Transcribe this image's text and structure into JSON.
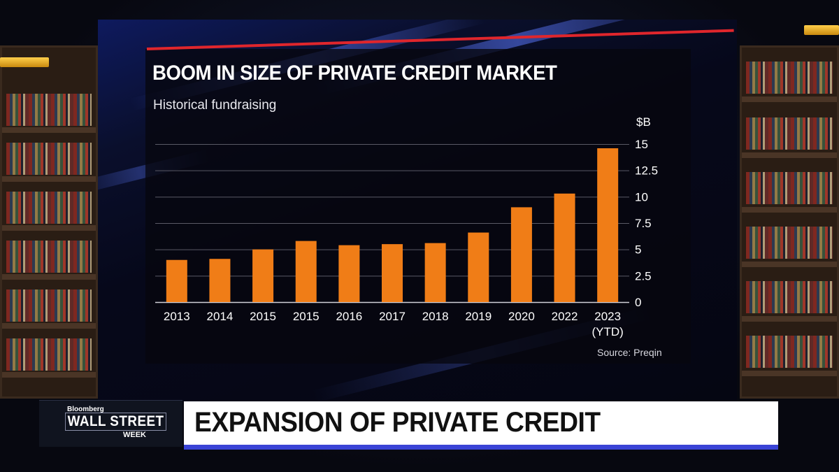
{
  "headline": "EXPANSION OF PRIVATE CREDIT",
  "show_logo": {
    "brand": "Bloomberg",
    "name": "WALL STREET",
    "sub": "WEEK"
  },
  "colors": {
    "bar": "#f07d17",
    "accent_red": "#e0262c",
    "accent_blue": "#3a44d6"
  },
  "chart_data": {
    "type": "bar",
    "title": "BOOM IN SIZE OF PRIVATE CREDIT MARKET",
    "subtitle": "Historical fundraising",
    "unit": "$B",
    "source": "Source: Preqin",
    "categories": [
      "2013",
      "2014",
      "2015",
      "2015",
      "2016",
      "2017",
      "2018",
      "2019",
      "2020",
      "2022",
      "2023\n(YTD)"
    ],
    "values": [
      4.0,
      4.1,
      5.0,
      5.8,
      5.4,
      5.5,
      5.6,
      6.6,
      9.0,
      10.3,
      14.6
    ],
    "yticks": [
      "0",
      "2.5",
      "5",
      "7.5",
      "10",
      "12.5",
      "15"
    ],
    "ylim": [
      0,
      15
    ],
    "grid": true,
    "yaxis_position": "right"
  }
}
